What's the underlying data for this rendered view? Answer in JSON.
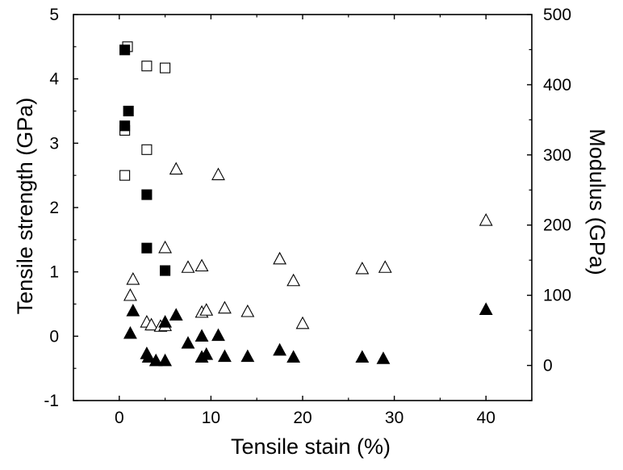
{
  "chart_data": {
    "type": "scatter",
    "title": "",
    "xlabel": "Tensile stain (%)",
    "ylabel_left": "Tensile strength (GPa)",
    "ylabel_right": "Modulus (GPa)",
    "xlim": [
      -5,
      45
    ],
    "ylim_left": [
      -1,
      5
    ],
    "ylim_right": [
      -50,
      500
    ],
    "x_ticks": [
      0,
      10,
      20,
      30,
      40
    ],
    "x_tick_labels": [
      "0",
      "10",
      "20",
      "30",
      "40"
    ],
    "y_left_ticks": [
      -1,
      0,
      1,
      2,
      3,
      4,
      5
    ],
    "y_left_tick_labels": [
      "-1",
      "0",
      "1",
      "2",
      "3",
      "4",
      "5"
    ],
    "y_right_ticks": [
      0,
      100,
      200,
      300,
      400,
      500
    ],
    "y_right_tick_labels": [
      "0",
      "100",
      "200",
      "300",
      "400",
      "500"
    ],
    "grid": false,
    "legend": "none",
    "series": [
      {
        "marker": "square-open",
        "axis": "left",
        "points": [
          [
            0.9,
            4.5
          ],
          [
            3.0,
            4.2
          ],
          [
            5.0,
            4.17
          ],
          [
            0.6,
            3.2
          ],
          [
            3.0,
            2.9
          ],
          [
            0.6,
            2.5
          ]
        ]
      },
      {
        "marker": "square-filled",
        "axis": "left",
        "points": [
          [
            0.6,
            4.45
          ],
          [
            1.0,
            3.5
          ],
          [
            0.6,
            3.27
          ],
          [
            3.0,
            2.2
          ],
          [
            3.0,
            1.37
          ],
          [
            5.0,
            1.02
          ]
        ]
      },
      {
        "marker": "triangle-open",
        "axis": "right",
        "points": [
          [
            6.2,
            280
          ],
          [
            10.8,
            272
          ],
          [
            40.0,
            207
          ],
          [
            5.0,
            168
          ],
          [
            7.5,
            140
          ],
          [
            9.0,
            142
          ],
          [
            17.5,
            152
          ],
          [
            26.5,
            138
          ],
          [
            29.0,
            140
          ],
          [
            19.0,
            121
          ],
          [
            1.5,
            123
          ],
          [
            1.2,
            100
          ],
          [
            9.0,
            76
          ],
          [
            9.5,
            79
          ],
          [
            11.5,
            82
          ],
          [
            14.0,
            77
          ],
          [
            3.0,
            62
          ],
          [
            3.5,
            58
          ],
          [
            4.5,
            56
          ],
          [
            5.0,
            57
          ],
          [
            20.0,
            60
          ]
        ]
      },
      {
        "marker": "triangle-filled",
        "axis": "right",
        "points": [
          [
            40.0,
            80
          ],
          [
            1.5,
            78
          ],
          [
            6.2,
            72
          ],
          [
            5.0,
            62
          ],
          [
            1.2,
            46
          ],
          [
            9.0,
            42
          ],
          [
            10.8,
            43
          ],
          [
            7.5,
            32
          ],
          [
            17.5,
            22
          ],
          [
            3.0,
            17
          ],
          [
            9.5,
            16
          ],
          [
            11.5,
            13
          ],
          [
            14.0,
            13
          ],
          [
            3.2,
            12
          ],
          [
            4.0,
            7
          ],
          [
            5.0,
            7
          ],
          [
            9.0,
            12
          ],
          [
            19.0,
            12
          ],
          [
            26.5,
            12
          ],
          [
            28.8,
            10
          ]
        ]
      }
    ]
  }
}
